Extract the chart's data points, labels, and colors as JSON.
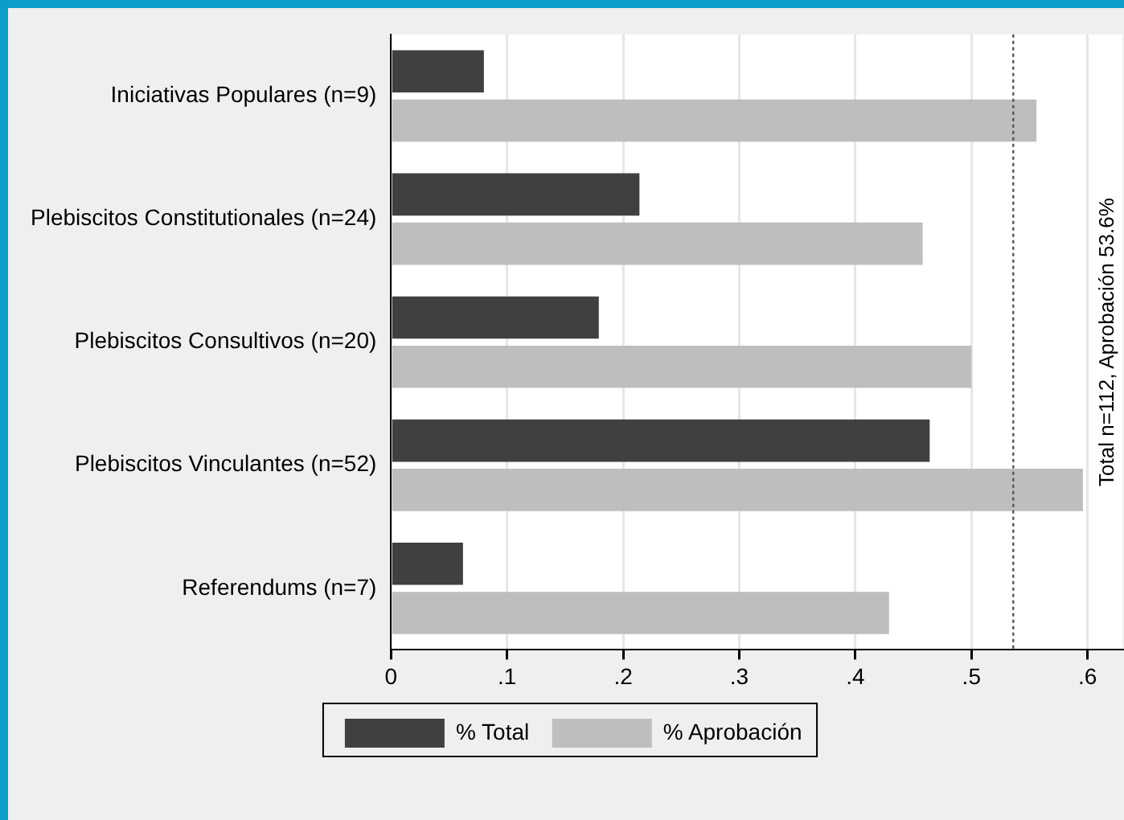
{
  "chart_data": {
    "type": "bar",
    "orientation": "horizontal",
    "categories": [
      "Iniciativas Populares (n=9)",
      "Plebiscitos Constitutionales (n=24)",
      "Plebiscitos Consultivos (n=20)",
      "Plebiscitos Vinculantes (n=52)",
      "Referendums (n=7)"
    ],
    "series": [
      {
        "name": "% Total",
        "color": "#404040",
        "values": [
          0.08,
          0.214,
          0.179,
          0.464,
          0.062
        ]
      },
      {
        "name": "% Aprobación",
        "color": "#bebebe",
        "values": [
          0.556,
          0.458,
          0.5,
          0.596,
          0.429
        ]
      }
    ],
    "xlim": [
      0,
      0.63
    ],
    "xticks": [
      {
        "value": 0,
        "label": "0"
      },
      {
        "value": 0.1,
        "label": ".1"
      },
      {
        "value": 0.2,
        "label": ".2"
      },
      {
        "value": 0.3,
        "label": ".3"
      },
      {
        "value": 0.4,
        "label": ".4"
      },
      {
        "value": 0.5,
        "label": ".5"
      },
      {
        "value": 0.6,
        "label": ".6"
      }
    ],
    "ref_lines": [
      {
        "axis": "x",
        "value": 0.536,
        "color": "#555555",
        "line_style": "dotted"
      }
    ],
    "annotations": [
      "Total n=112, Aprobación 53.6%"
    ],
    "grid": "x",
    "legend": "bottom"
  }
}
